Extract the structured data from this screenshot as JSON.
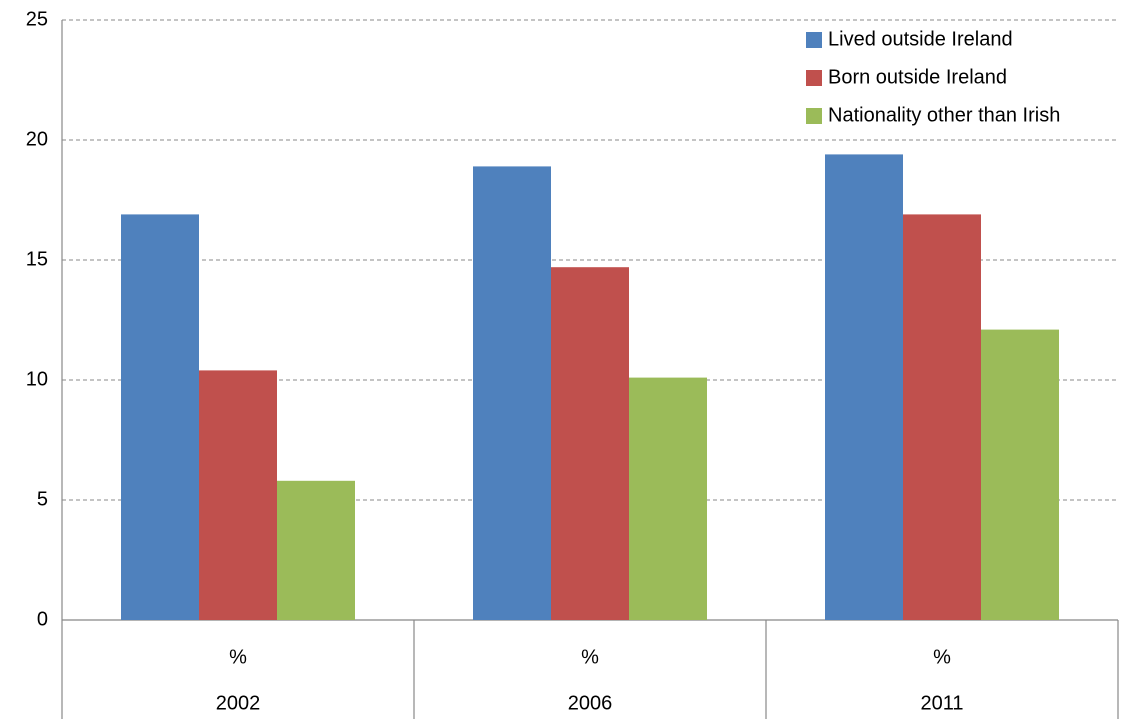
{
  "chart_data": {
    "type": "bar",
    "categories": [
      "2002",
      "2006",
      "2011"
    ],
    "category_sublabels": [
      "%",
      "%",
      "%"
    ],
    "series": [
      {
        "name": "Lived outside Ireland",
        "color": "#4f81bd",
        "values": [
          16.9,
          18.9,
          19.4
        ]
      },
      {
        "name": "Born outside Ireland",
        "color": "#c0504d",
        "values": [
          10.4,
          14.7,
          16.9
        ]
      },
      {
        "name": "Nationality other than Irish",
        "color": "#9bbb59",
        "values": [
          5.8,
          10.1,
          12.1
        ]
      }
    ],
    "ylim": [
      0,
      25
    ],
    "yticks": [
      0,
      5,
      10,
      15,
      20,
      25
    ],
    "grid": true,
    "legend": "top-right"
  }
}
